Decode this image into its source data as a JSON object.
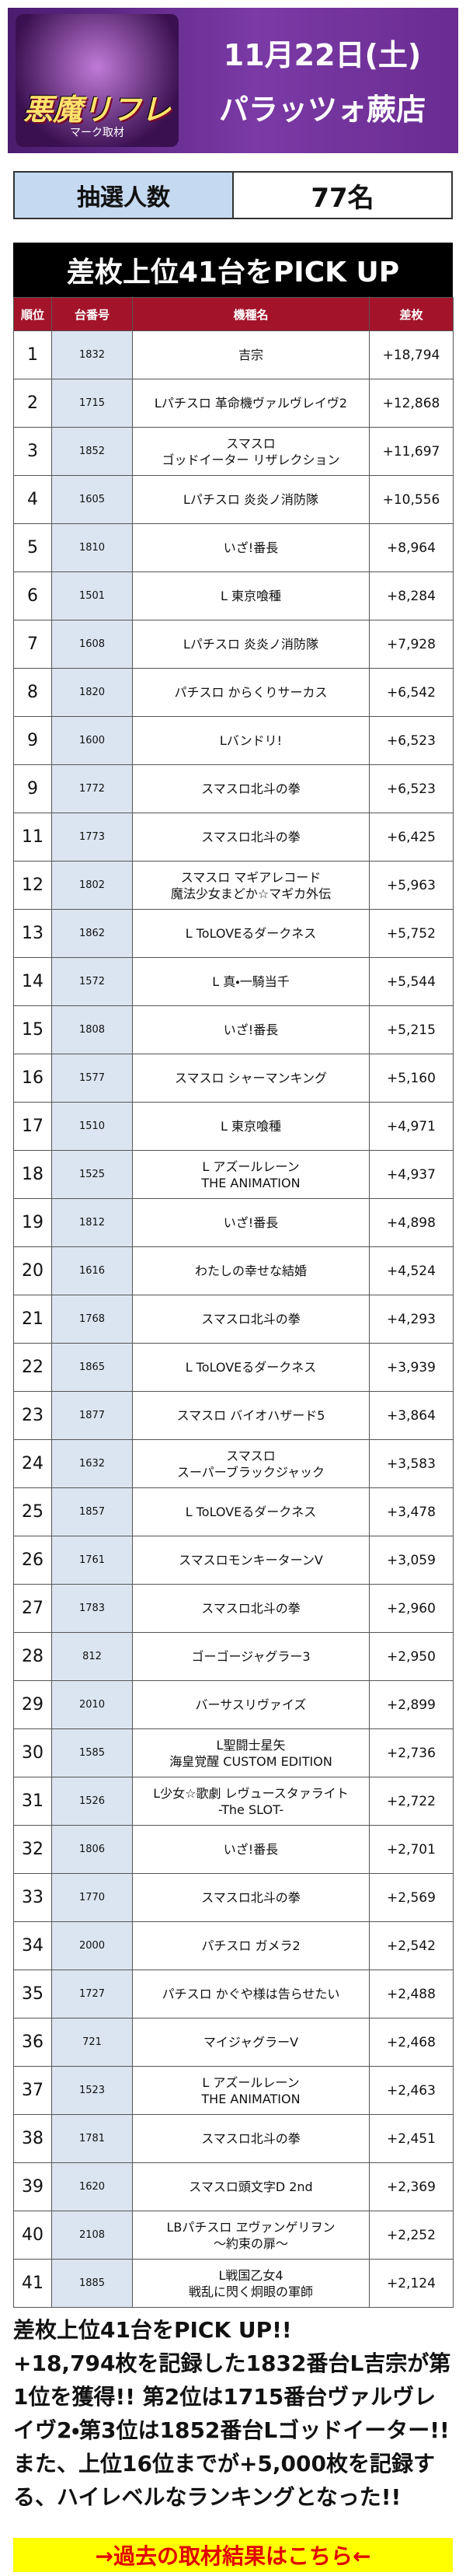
{
  "header": {
    "logo": "悪魔リフレ",
    "logo_sub": "マーク取材",
    "date": "11月22日(土)",
    "store": "パラッツォ蕨店"
  },
  "lottery": {
    "label": "抽選人数",
    "value": "77名"
  },
  "table": {
    "title": "差枚上位41台をPICK UP",
    "columns": [
      "順位",
      "台番号",
      "機種名",
      "差枚"
    ],
    "rows": [
      [
        "1",
        "1832",
        [
          "吉宗"
        ],
        "+18,794"
      ],
      [
        "2",
        "1715",
        [
          "Lパチスロ 革命機ヴァルヴレイヴ2"
        ],
        "+12,868"
      ],
      [
        "3",
        "1852",
        [
          "スマスロ",
          "ゴッドイーター リザレクション"
        ],
        "+11,697"
      ],
      [
        "4",
        "1605",
        [
          "Lパチスロ 炎炎ノ消防隊"
        ],
        "+10,556"
      ],
      [
        "5",
        "1810",
        [
          "いざ!番長"
        ],
        "+8,964"
      ],
      [
        "6",
        "1501",
        [
          "L 東京喰種"
        ],
        "+8,284"
      ],
      [
        "7",
        "1608",
        [
          "Lパチスロ 炎炎ノ消防隊"
        ],
        "+7,928"
      ],
      [
        "8",
        "1820",
        [
          "パチスロ からくりサーカス"
        ],
        "+6,542"
      ],
      [
        "9",
        "1600",
        [
          "Lバンドリ!"
        ],
        "+6,523"
      ],
      [
        "9",
        "1772",
        [
          "スマスロ北斗の拳"
        ],
        "+6,523"
      ],
      [
        "11",
        "1773",
        [
          "スマスロ北斗の拳"
        ],
        "+6,425"
      ],
      [
        "12",
        "1802",
        [
          "スマスロ マギアレコード",
          "魔法少女まどか☆マギカ外伝"
        ],
        "+5,963"
      ],
      [
        "13",
        "1862",
        [
          "L ToLOVEるダークネス"
        ],
        "+5,752"
      ],
      [
        "14",
        "1572",
        [
          "L 真・一騎当千"
        ],
        "+5,544"
      ],
      [
        "15",
        "1808",
        [
          "いざ!番長"
        ],
        "+5,215"
      ],
      [
        "16",
        "1577",
        [
          "スマスロ シャーマンキング"
        ],
        "+5,160"
      ],
      [
        "17",
        "1510",
        [
          "L 東京喰種"
        ],
        "+4,971"
      ],
      [
        "18",
        "1525",
        [
          "L アズールレーン",
          "THE ANIMATION"
        ],
        "+4,937"
      ],
      [
        "19",
        "1812",
        [
          "いざ!番長"
        ],
        "+4,898"
      ],
      [
        "20",
        "1616",
        [
          "わたしの幸せな結婚"
        ],
        "+4,524"
      ],
      [
        "21",
        "1768",
        [
          "スマスロ北斗の拳"
        ],
        "+4,293"
      ],
      [
        "22",
        "1865",
        [
          "L ToLOVEるダークネス"
        ],
        "+3,939"
      ],
      [
        "23",
        "1877",
        [
          "スマスロ バイオハザード5"
        ],
        "+3,864"
      ],
      [
        "24",
        "1632",
        [
          "スマスロ",
          "スーパーブラックジャック"
        ],
        "+3,583"
      ],
      [
        "25",
        "1857",
        [
          "L ToLOVEるダークネス"
        ],
        "+3,478"
      ],
      [
        "26",
        "1761",
        [
          "スマスロモンキーターンV"
        ],
        "+3,059"
      ],
      [
        "27",
        "1783",
        [
          "スマスロ北斗の拳"
        ],
        "+2,960"
      ],
      [
        "28",
        "812",
        [
          "ゴーゴージャグラー3"
        ],
        "+2,950"
      ],
      [
        "29",
        "2010",
        [
          "バーサスリヴァイズ"
        ],
        "+2,899"
      ],
      [
        "30",
        "1585",
        [
          "L聖闘士星矢",
          "海皇覚醒 CUSTOM EDITION"
        ],
        "+2,736"
      ],
      [
        "31",
        "1526",
        [
          "L少女☆歌劇 レヴュースタァライト",
          "-The SLOT-"
        ],
        "+2,722"
      ],
      [
        "32",
        "1806",
        [
          "いざ!番長"
        ],
        "+2,701"
      ],
      [
        "33",
        "1770",
        [
          "スマスロ北斗の拳"
        ],
        "+2,569"
      ],
      [
        "34",
        "2000",
        [
          "パチスロ ガメラ2"
        ],
        "+2,542"
      ],
      [
        "35",
        "1727",
        [
          "パチスロ かぐや様は告らせたい"
        ],
        "+2,488"
      ],
      [
        "36",
        "721",
        [
          "マイジャグラーV"
        ],
        "+2,468"
      ],
      [
        "37",
        "1523",
        [
          "L アズールレーン",
          "THE ANIMATION"
        ],
        "+2,463"
      ],
      [
        "38",
        "1781",
        [
          "スマスロ北斗の拳"
        ],
        "+2,451"
      ],
      [
        "39",
        "1620",
        [
          "スマスロ頭文字D 2nd"
        ],
        "+2,369"
      ],
      [
        "40",
        "2108",
        [
          "LBパチスロ ヱヴァンゲリヲン",
          "～約束の扉～"
        ],
        "+2,252"
      ],
      [
        "41",
        "1885",
        [
          "L戦国乙女4",
          "戦乱に閃く炯眼の軍師"
        ],
        "+2,124"
      ]
    ]
  },
  "text": [
    "差枚上位41台をPICK UP!!",
    "+18,794枚を記録した1832番台L吉宗が第1位を獲得!! 第2位は1715番台ヴァルヴレイヴ2・第3位は1852番台Lゴッドイーター!!",
    "また、上位16位までが+5,000枚を記録する、ハイレベルなランキングとなった!!"
  ],
  "link": "→過去の取材結果はこちら←"
}
